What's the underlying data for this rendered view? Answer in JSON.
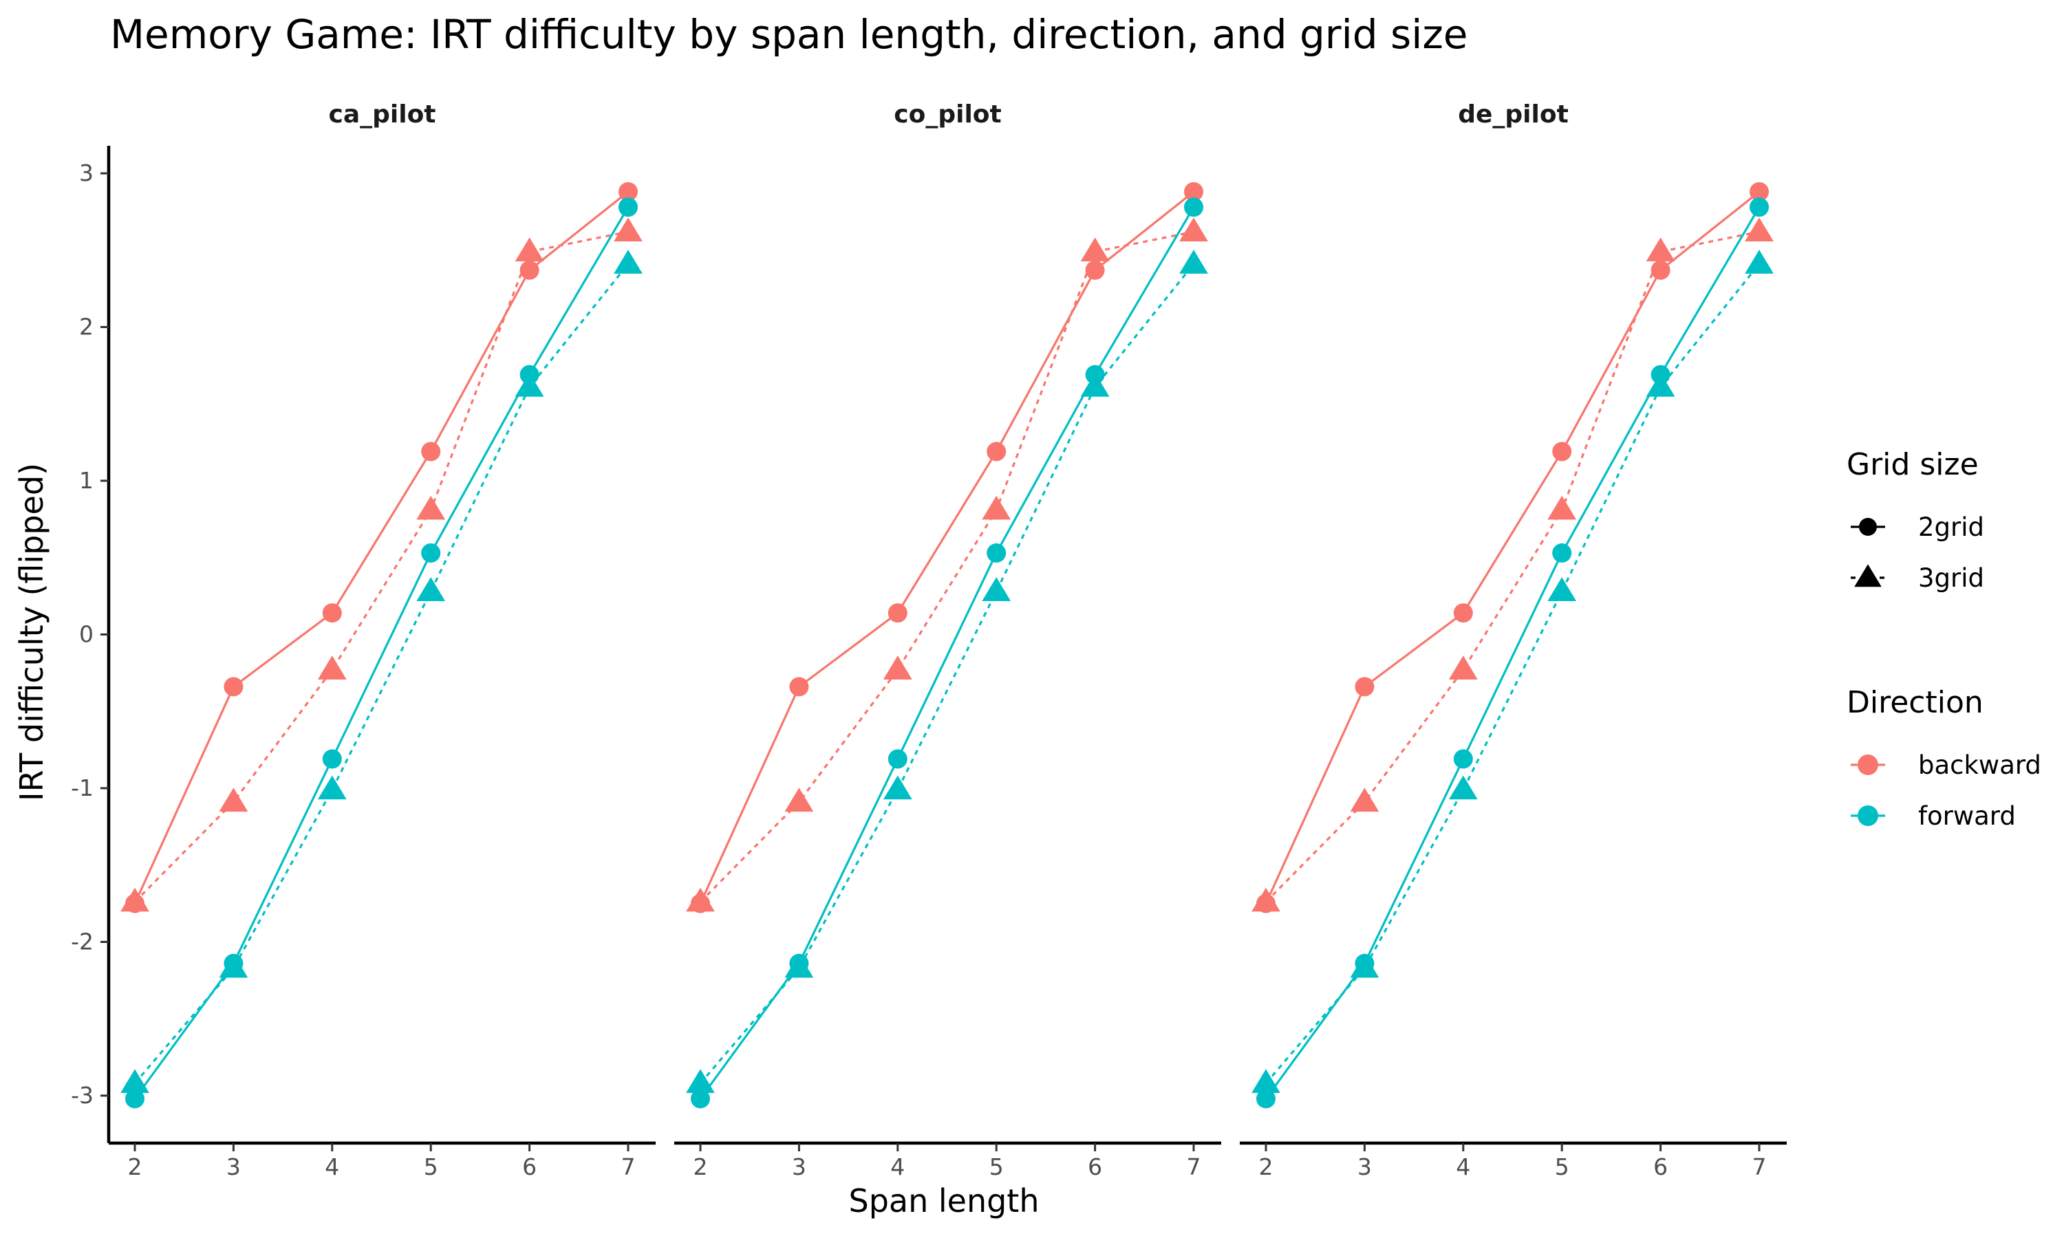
{
  "chart_data": {
    "type": "line",
    "title": "Memory Game: IRT difficulty by span length, direction, and grid size",
    "xlabel": "Span length",
    "ylabel": "IRT difficulty (flipped)",
    "x": [
      2,
      3,
      4,
      5,
      6,
      7
    ],
    "x_tick_labels": [
      "2",
      "3",
      "4",
      "5",
      "6",
      "7"
    ],
    "y_tick_values": [
      -3,
      -2,
      -1,
      0,
      1,
      2,
      3
    ],
    "y_tick_labels": [
      "-3",
      "-2",
      "-1",
      "0",
      "1",
      "2",
      "3"
    ],
    "xlim": [
      2,
      7
    ],
    "ylim": [
      -3.2,
      3.2
    ],
    "grid": false,
    "legend_position": "right",
    "colors": {
      "backward": "#F8766D",
      "forward": "#00BFC4"
    },
    "panels": [
      {
        "name": "ca_pilot",
        "series": [
          {
            "direction": "backward",
            "grid": "2grid",
            "values": [
              -1.75,
              -0.34,
              0.14,
              1.19,
              2.37,
              2.88
            ]
          },
          {
            "direction": "backward",
            "grid": "3grid",
            "values": [
              -1.74,
              -1.09,
              -0.23,
              0.81,
              2.49,
              2.62
            ]
          },
          {
            "direction": "forward",
            "grid": "2grid",
            "values": [
              -3.02,
              -2.14,
              -0.81,
              0.53,
              1.69,
              2.78
            ]
          },
          {
            "direction": "forward",
            "grid": "3grid",
            "values": [
              -2.92,
              -2.17,
              -1.01,
              0.28,
              1.61,
              2.41
            ]
          }
        ]
      },
      {
        "name": "co_pilot",
        "series": [
          {
            "direction": "backward",
            "grid": "2grid",
            "values": [
              -1.75,
              -0.34,
              0.14,
              1.19,
              2.37,
              2.88
            ]
          },
          {
            "direction": "backward",
            "grid": "3grid",
            "values": [
              -1.74,
              -1.09,
              -0.23,
              0.81,
              2.49,
              2.62
            ]
          },
          {
            "direction": "forward",
            "grid": "2grid",
            "values": [
              -3.02,
              -2.14,
              -0.81,
              0.53,
              1.69,
              2.78
            ]
          },
          {
            "direction": "forward",
            "grid": "3grid",
            "values": [
              -2.92,
              -2.17,
              -1.01,
              0.28,
              1.61,
              2.41
            ]
          }
        ]
      },
      {
        "name": "de_pilot",
        "series": [
          {
            "direction": "backward",
            "grid": "2grid",
            "values": [
              -1.75,
              -0.34,
              0.14,
              1.19,
              2.37,
              2.88
            ]
          },
          {
            "direction": "backward",
            "grid": "3grid",
            "values": [
              -1.74,
              -1.09,
              -0.23,
              0.81,
              2.49,
              2.62
            ]
          },
          {
            "direction": "forward",
            "grid": "2grid",
            "values": [
              -3.02,
              -2.14,
              -0.81,
              0.53,
              1.69,
              2.78
            ]
          },
          {
            "direction": "forward",
            "grid": "3grid",
            "values": [
              -2.92,
              -2.17,
              -1.01,
              0.28,
              1.61,
              2.41
            ]
          }
        ]
      }
    ],
    "legend": {
      "grid_title": "Grid size",
      "grid_items": [
        {
          "label": "2grid",
          "shape": "circle",
          "linetype": "solid"
        },
        {
          "label": "3grid",
          "shape": "triangle",
          "linetype": "dashed"
        }
      ],
      "direction_title": "Direction",
      "direction_items": [
        {
          "label": "backward"
        },
        {
          "label": "forward"
        }
      ]
    }
  }
}
